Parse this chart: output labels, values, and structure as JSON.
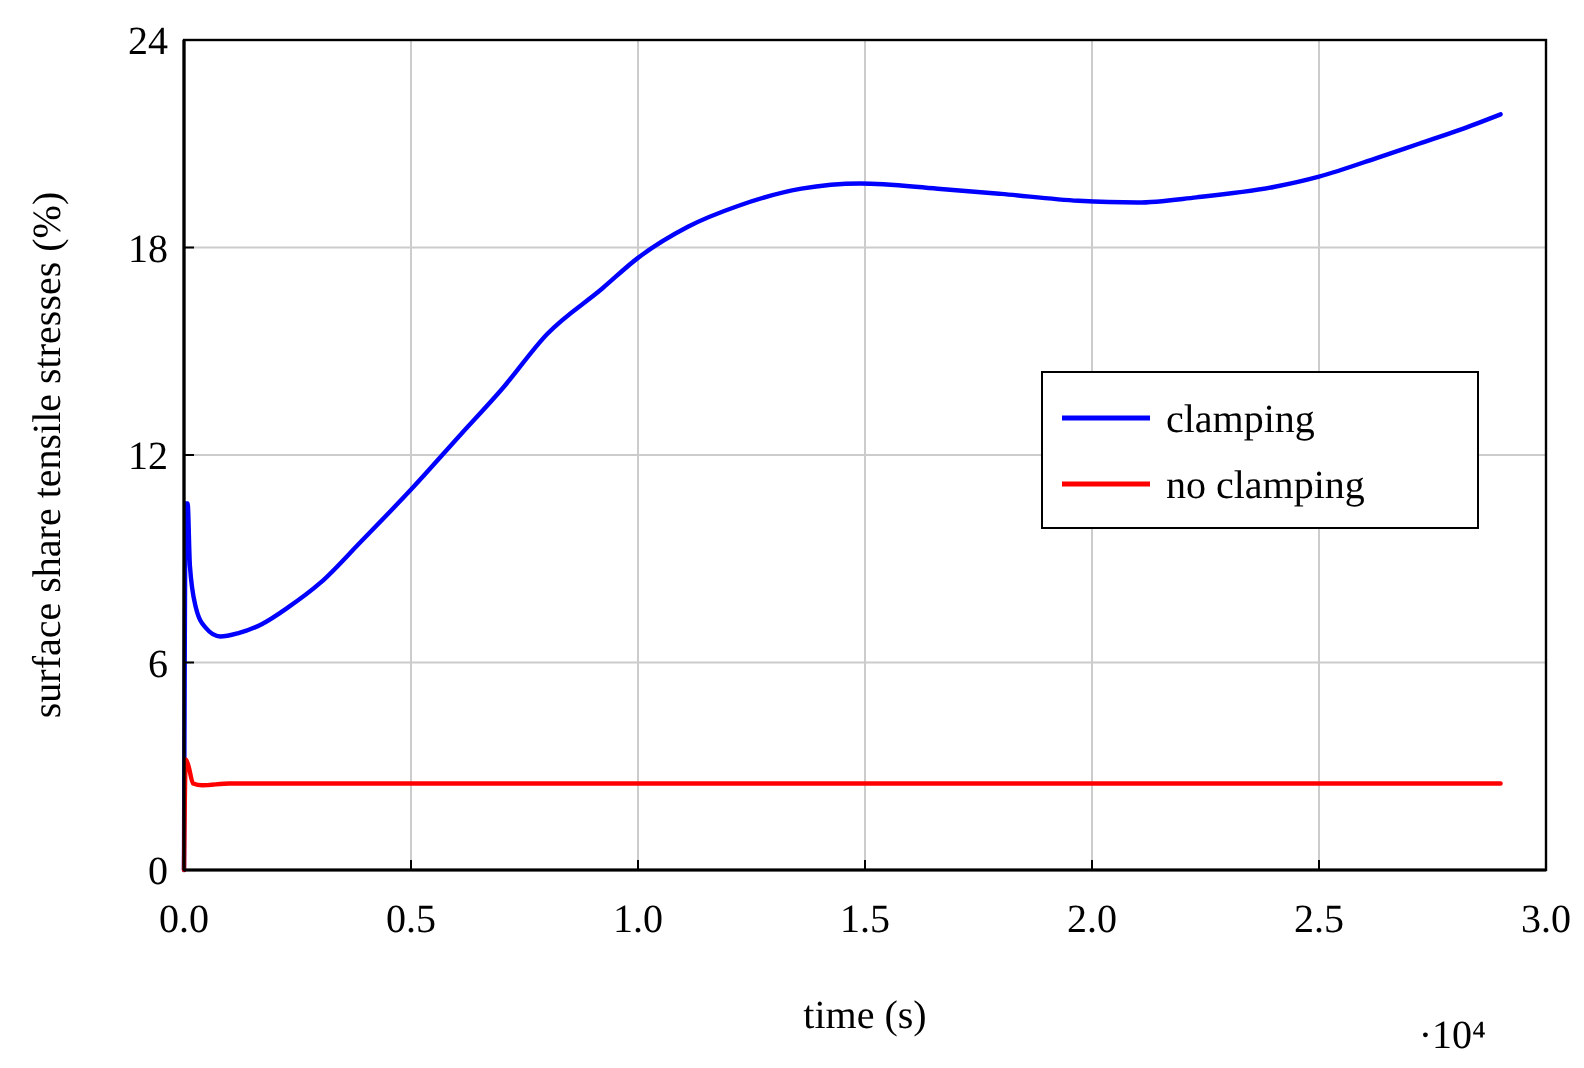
{
  "chart_data": {
    "type": "line",
    "xlabel": "time (s)",
    "ylabel": "surface share tensile stresses (%)",
    "annotations": [
      "·10⁴"
    ],
    "xlim": [
      0,
      3
    ],
    "ylim": [
      0,
      24
    ],
    "xticks": [
      {
        "value": 0,
        "label": "0.0"
      },
      0.5,
      {
        "value": 1,
        "label": "1.0"
      },
      1.5,
      {
        "value": 2,
        "label": "2.0"
      },
      2.5,
      {
        "value": 3,
        "label": "3.0"
      }
    ],
    "yticks": [
      0,
      6,
      12,
      18,
      24
    ],
    "grid": true,
    "legend": "right",
    "marker": "none",
    "line_style": "solid",
    "series": [
      {
        "name": "clamping",
        "color": "#0000ff",
        "x": [
          0,
          0.004,
          0.008,
          0.013,
          0.026,
          0.048,
          0.08,
          0.12,
          0.17,
          0.23,
          0.3,
          0.39,
          0.5,
          0.61,
          0.7,
          0.8,
          0.92,
          1.0,
          1.11,
          1.22,
          1.36,
          1.49,
          1.66,
          1.8,
          1.97,
          2.1,
          2.23,
          2.4,
          2.5,
          2.63,
          2.72,
          2.81,
          2.9
        ],
        "values": [
          0,
          10.6,
          10.6,
          8.8,
          7.6,
          7.0,
          6.75,
          6.85,
          7.1,
          7.6,
          8.3,
          9.5,
          11.0,
          12.6,
          13.9,
          15.5,
          16.8,
          17.7,
          18.6,
          19.2,
          19.7,
          19.85,
          19.7,
          19.55,
          19.35,
          19.3,
          19.45,
          19.75,
          20.05,
          20.6,
          21.0,
          21.4,
          21.85
        ]
      },
      {
        "name": "no clamping",
        "color": "#ff0000",
        "x": [
          0,
          0.004,
          0.01,
          0.02,
          0.04,
          0.1,
          0.5,
          1.0,
          1.5,
          2.0,
          2.5,
          2.9
        ],
        "values": [
          0,
          3.2,
          3.0,
          2.5,
          2.45,
          2.5,
          2.5,
          2.5,
          2.5,
          2.5,
          2.5,
          2.5
        ]
      }
    ]
  }
}
